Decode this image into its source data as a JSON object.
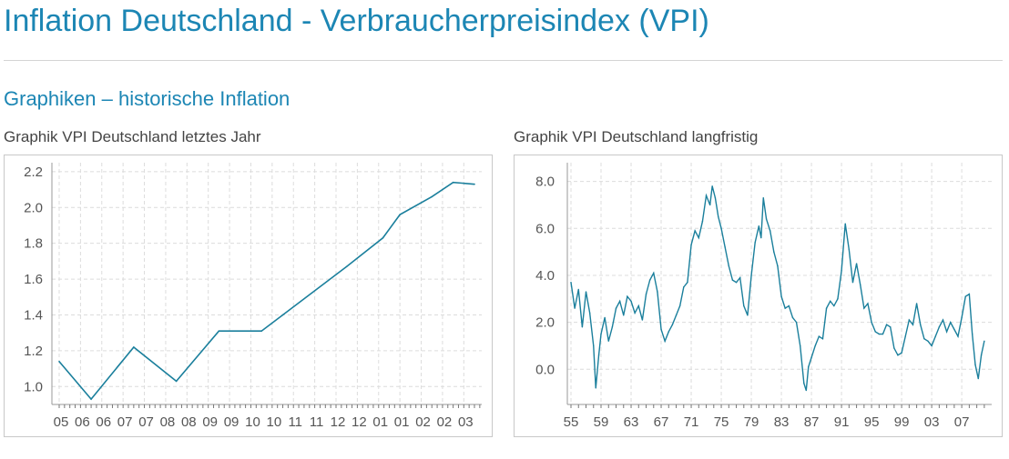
{
  "page": {
    "title": "Inflation Deutschland - Verbraucherpreisindex (VPI)",
    "section": "Graphiken – historische Inflation"
  },
  "colors": {
    "accent": "#1c86b4",
    "line": "#1a7f9c",
    "grid": "#dcdcdc"
  },
  "chart_data": [
    {
      "type": "line",
      "caption": "Graphik VPI Deutschland letztes Jahr",
      "categories": [
        "05",
        "06",
        "06",
        "07",
        "07",
        "08",
        "08",
        "09",
        "09",
        "10",
        "10",
        "11",
        "11",
        "12",
        "12",
        "01",
        "01",
        "02",
        "02",
        "03"
      ],
      "y_ticks": [
        "2.2",
        "2.0",
        "1.8",
        "1.6",
        "1.4",
        "1.2",
        "1.0"
      ],
      "ylim": [
        0.9,
        2.25
      ],
      "series": [
        {
          "name": "VPI",
          "x": [
            0,
            1.5,
            3.5,
            5.5,
            7.5,
            9.5,
            10.5,
            13.5,
            15.2,
            16,
            17.5,
            18.5,
            19.5
          ],
          "values": [
            1.14,
            0.93,
            1.22,
            1.03,
            1.31,
            1.31,
            1.4,
            1.67,
            1.83,
            1.96,
            2.06,
            2.14,
            2.13
          ]
        }
      ]
    },
    {
      "type": "line",
      "caption": "Graphik VPI Deutschland langfristig",
      "x_ticks": [
        "55",
        "59",
        "63",
        "67",
        "71",
        "75",
        "79",
        "83",
        "87",
        "91",
        "95",
        "99",
        "03",
        "07"
      ],
      "y_ticks": [
        "8.0",
        "6.0",
        "4.0",
        "2.0",
        "0.0"
      ],
      "xlim": [
        1955,
        2010.5
      ],
      "ylim": [
        -1.5,
        8.8
      ],
      "series": [
        {
          "name": "VPI",
          "x": [
            1955,
            1955.5,
            1956,
            1956.5,
            1957,
            1957.5,
            1958,
            1958.3,
            1958.7,
            1959,
            1959.5,
            1960,
            1960.5,
            1961,
            1961.5,
            1962,
            1962.5,
            1963,
            1963.5,
            1964,
            1964.5,
            1965,
            1965.5,
            1966,
            1966.5,
            1967,
            1967.5,
            1968,
            1968.5,
            1969,
            1969.5,
            1970,
            1970.5,
            1971,
            1971.5,
            1972,
            1972.5,
            1973,
            1973.5,
            1973.8,
            1974.2,
            1974.6,
            1975,
            1975.5,
            1976,
            1976.5,
            1977,
            1977.5,
            1978,
            1978.5,
            1979,
            1979.5,
            1980,
            1980.3,
            1980.6,
            1981,
            1981.5,
            1982,
            1982.5,
            1983,
            1983.5,
            1984,
            1984.5,
            1985,
            1985.5,
            1986,
            1986.3,
            1986.6,
            1987,
            1987.5,
            1988,
            1988.5,
            1989,
            1989.5,
            1990,
            1990.5,
            1991,
            1991.5,
            1992,
            1992.5,
            1993,
            1993.5,
            1994,
            1994.5,
            1995,
            1995.5,
            1996,
            1996.5,
            1997,
            1997.5,
            1998,
            1998.5,
            1999,
            1999.5,
            2000,
            2000.5,
            2001,
            2001.5,
            2002,
            2002.5,
            2003,
            2003.5,
            2004,
            2004.5,
            2005,
            2005.5,
            2006,
            2006.5,
            2007,
            2007.5,
            2008,
            2008.4,
            2008.8,
            2009.2,
            2009.6,
            2010
          ],
          "values": [
            3.7,
            2.6,
            3.4,
            1.8,
            3.3,
            2.4,
            1.0,
            -0.8,
            0.6,
            1.5,
            2.2,
            1.2,
            1.8,
            2.6,
            2.9,
            2.3,
            3.1,
            2.9,
            2.4,
            2.7,
            2.1,
            3.2,
            3.8,
            4.1,
            3.3,
            1.7,
            1.2,
            1.6,
            1.9,
            2.3,
            2.7,
            3.5,
            3.7,
            5.3,
            5.9,
            5.6,
            6.3,
            7.4,
            7.0,
            7.8,
            7.3,
            6.5,
            6.0,
            5.2,
            4.4,
            3.8,
            3.7,
            3.9,
            2.7,
            2.3,
            4.0,
            5.4,
            6.1,
            5.6,
            7.3,
            6.4,
            5.9,
            5.0,
            4.4,
            3.1,
            2.6,
            2.7,
            2.2,
            2.0,
            1.0,
            -0.6,
            -0.9,
            0.1,
            0.5,
            1.0,
            1.4,
            1.3,
            2.6,
            2.9,
            2.7,
            3.0,
            4.2,
            6.2,
            5.1,
            3.7,
            4.5,
            3.6,
            2.6,
            2.8,
            2.0,
            1.6,
            1.5,
            1.5,
            1.9,
            1.8,
            0.9,
            0.6,
            0.7,
            1.4,
            2.1,
            1.9,
            2.8,
            1.9,
            1.3,
            1.2,
            1.0,
            1.4,
            1.8,
            2.1,
            1.6,
            2.0,
            1.7,
            1.4,
            2.2,
            3.1,
            3.2,
            1.5,
            0.2,
            -0.4,
            0.6,
            1.2
          ]
        }
      ]
    }
  ]
}
